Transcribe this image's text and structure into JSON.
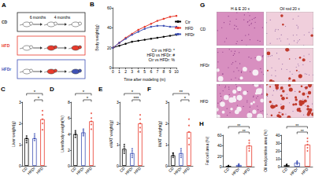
{
  "diagram": {
    "panel": "A",
    "groups": [
      {
        "label": "CD",
        "color": "#222222",
        "mice": [
          "#ffffff",
          "#ffffff",
          "#ffffff"
        ]
      },
      {
        "label": "HFD",
        "color": "#e8392b",
        "mice": [
          "#ffffff",
          "#e8392b",
          "#e8392b"
        ]
      },
      {
        "label": "HFDr",
        "color": "#3f51b5",
        "mice": [
          "#ffffff",
          "#e8392b",
          "#3f51b5"
        ]
      }
    ],
    "durations": [
      "6 months",
      "4 months"
    ]
  },
  "chart_data": [
    {
      "panel": "B",
      "type": "line",
      "x_label": "Time after modeling (m)",
      "y_label": "Body weight(g)",
      "x": [
        0,
        1,
        2,
        3,
        4,
        5,
        6,
        7,
        8,
        9,
        10
      ],
      "xlim": [
        0,
        10
      ],
      "xticks": [
        0,
        1,
        2,
        3,
        4,
        5,
        6,
        7,
        8,
        9,
        10
      ],
      "ylim": [
        0,
        60
      ],
      "yticks": [
        0,
        20,
        40,
        60
      ],
      "grid": false,
      "legend": "upper right",
      "series": [
        {
          "name": "Ctr",
          "color": "#000000",
          "marker": "circle",
          "values": [
            20,
            22,
            24,
            26,
            27,
            28,
            29,
            30,
            31,
            32,
            33
          ]
        },
        {
          "name": "HFD",
          "color": "#e8392b",
          "marker": "circle",
          "values": [
            20,
            25,
            30,
            34,
            38,
            41,
            44,
            47,
            49,
            51,
            52
          ]
        },
        {
          "name": "HFDr",
          "color": "#3f51b5",
          "marker": "circle",
          "values": [
            20,
            25,
            29,
            33,
            36,
            39,
            41,
            42,
            42,
            41,
            41
          ]
        }
      ],
      "annotations": [
        "Ctr vs HFD: *",
        "HFD vs HFDr: #",
        "Ctr vs HFDr: %"
      ]
    },
    {
      "panel": "C",
      "type": "bar",
      "y_label": "Liver weight(g)",
      "categories": [
        "CD",
        "HFDr",
        "HFD"
      ],
      "colors": [
        "#000000",
        "#3f51b5",
        "#e8392b"
      ],
      "values": [
        1.3,
        1.3,
        2.2
      ],
      "points": [
        [
          1.1,
          1.2,
          1.3,
          1.3,
          1.4
        ],
        [
          1.2,
          1.3,
          1.3,
          1.4,
          1.5
        ],
        [
          1.7,
          2.0,
          2.2,
          2.4,
          2.6
        ]
      ],
      "ylim": [
        0,
        3
      ],
      "yticks": [
        0,
        1,
        2,
        3
      ],
      "annotations": [
        {
          "text": "*",
          "between": [
            "CD",
            "HFD"
          ]
        },
        {
          "text": "*",
          "between": [
            "HFDr",
            "HFD"
          ]
        }
      ]
    },
    {
      "panel": "D",
      "type": "bar",
      "y_label": "Liver/body weight(%)",
      "categories": [
        "CD",
        "HFDr",
        "HFD"
      ],
      "colors": [
        "#000000",
        "#3f51b5",
        "#e8392b"
      ],
      "values": [
        4.0,
        4.2,
        5.6
      ],
      "points": [
        [
          3.6,
          3.9,
          4.0,
          4.2,
          4.4
        ],
        [
          3.8,
          4.0,
          4.2,
          4.4,
          4.6
        ],
        [
          4.6,
          5.2,
          5.6,
          6.0,
          6.6
        ]
      ],
      "ylim": [
        0,
        8
      ],
      "yticks": [
        0,
        2,
        4,
        6,
        8
      ],
      "annotations": [
        {
          "text": "*",
          "between": [
            "CD",
            "HFD"
          ]
        },
        {
          "text": "*",
          "between": [
            "HFDr",
            "HFD"
          ]
        }
      ]
    },
    {
      "panel": "E",
      "type": "bar",
      "y_label": "eWAT weight(g)",
      "categories": [
        "CD",
        "HFDr",
        "HFD"
      ],
      "colors": [
        "#000000",
        "#3f51b5",
        "#e8392b"
      ],
      "values": [
        0.8,
        0.6,
        2.0
      ],
      "points": [
        [
          0.6,
          0.7,
          0.8,
          0.9,
          1.0
        ],
        [
          0.4,
          0.5,
          0.6,
          0.7,
          0.8
        ],
        [
          1.6,
          1.8,
          2.0,
          2.2,
          2.4
        ]
      ],
      "ylim": [
        0,
        3
      ],
      "yticks": [
        0,
        1,
        2,
        3
      ],
      "annotations": [
        {
          "text": "*",
          "between": [
            "CD",
            "HFD"
          ]
        },
        {
          "text": "***",
          "between": [
            "HFDr",
            "HFD"
          ]
        }
      ]
    },
    {
      "panel": "F",
      "type": "bar",
      "y_label": "iWAT weight(g)",
      "categories": [
        "CD",
        "HFDr",
        "HFD"
      ],
      "colors": [
        "#000000",
        "#3f51b5",
        "#e8392b"
      ],
      "values": [
        0.5,
        0.6,
        1.6
      ],
      "points": [
        [
          0.4,
          0.5,
          0.5,
          0.6,
          0.6
        ],
        [
          0.4,
          0.5,
          0.6,
          0.7,
          0.8
        ],
        [
          1.0,
          1.3,
          1.6,
          1.9,
          2.2
        ]
      ],
      "ylim": [
        0,
        3
      ],
      "yticks": [
        0,
        1,
        2,
        3
      ],
      "annotations": [
        {
          "text": "**",
          "between": [
            "CD",
            "HFD"
          ]
        },
        {
          "text": "*",
          "between": [
            "HFDr",
            "HFD"
          ]
        }
      ]
    },
    {
      "panel": "H",
      "type": "bar",
      "y_label": "Fat cell area (%)",
      "categories": [
        "CD",
        "HFDr",
        "HFD"
      ],
      "colors": [
        "#000000",
        "#3f51b5",
        "#e8392b"
      ],
      "values": [
        1,
        3,
        40
      ],
      "points": [
        [
          0,
          1,
          1,
          1,
          2
        ],
        [
          1,
          2,
          3,
          4,
          5
        ],
        [
          30,
          35,
          40,
          45,
          50
        ]
      ],
      "ylim": [
        0,
        60
      ],
      "yticks": [
        0,
        20,
        40,
        60
      ],
      "annotations": [
        {
          "text": "**",
          "between": [
            "CD",
            "HFD"
          ]
        },
        {
          "text": "**",
          "between": [
            "HFDr",
            "HFD"
          ]
        }
      ]
    },
    {
      "type": "bar",
      "y_label": "Oil red positive area (%)",
      "categories": [
        "CD",
        "HFDr",
        "HFD"
      ],
      "colors": [
        "#000000",
        "#3f51b5",
        "#e8392b"
      ],
      "values": [
        2,
        5,
        28
      ],
      "points": [
        [
          1,
          2,
          2,
          2,
          3
        ],
        [
          3,
          4,
          5,
          6,
          7
        ],
        [
          20,
          24,
          28,
          32,
          36
        ]
      ],
      "ylim": [
        0,
        40
      ],
      "yticks": [
        0,
        10,
        20,
        30,
        40
      ],
      "annotations": [
        {
          "text": "**",
          "between": [
            "CD",
            "HFD"
          ]
        },
        {
          "text": "**",
          "between": [
            "HFDr",
            "HFD"
          ]
        }
      ]
    }
  ],
  "images": {
    "panel": "G",
    "columns": [
      "H & E 20 x",
      "Oil rod 20 x"
    ],
    "rows": [
      "CD",
      "HFDr",
      "HFD"
    ]
  }
}
